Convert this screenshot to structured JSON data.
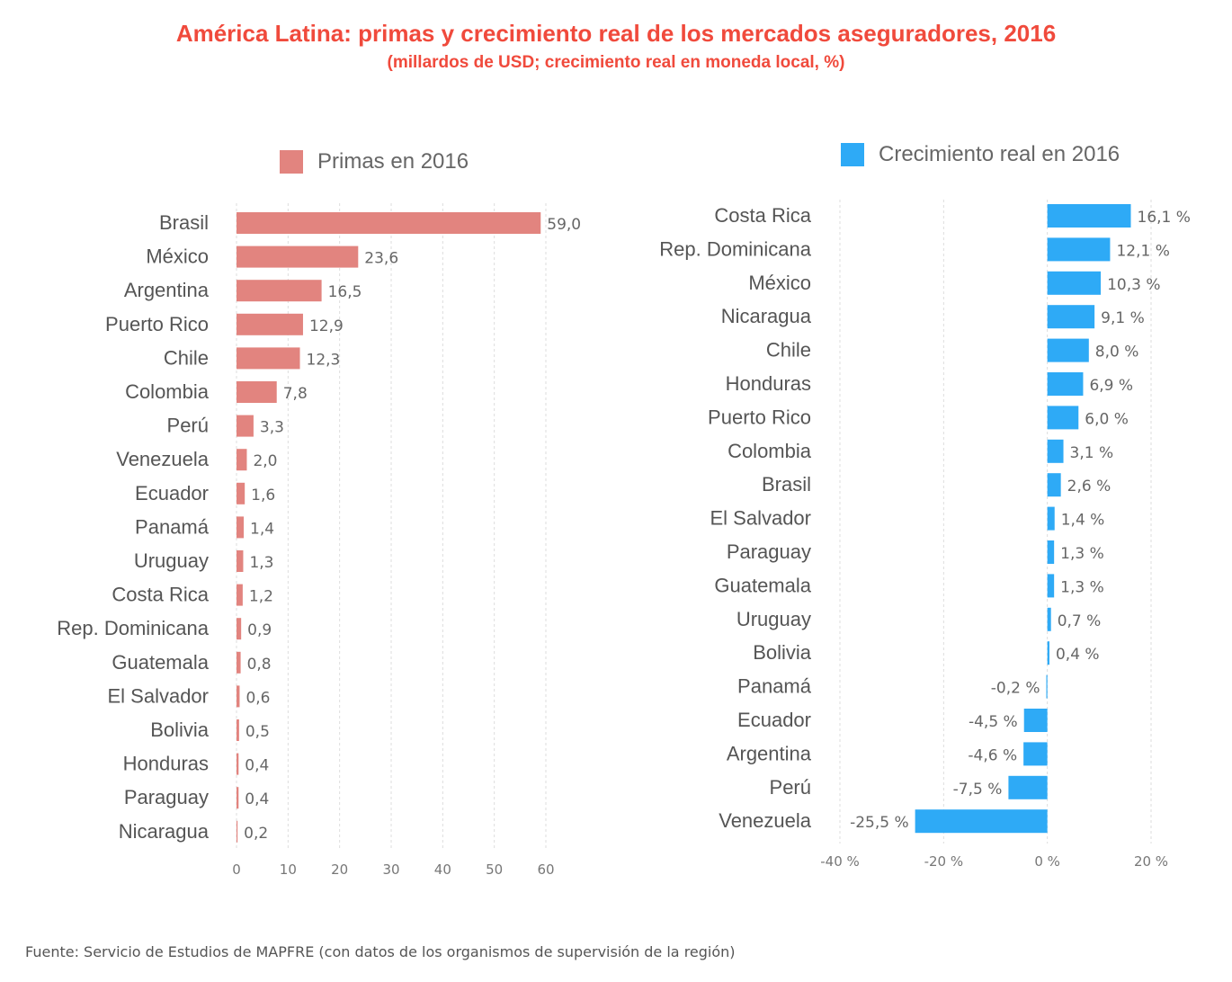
{
  "title": "América Latina: primas y crecimiento real de los mercados aseguradores, 2016",
  "subtitle": "(millardos de USD; crecimiento real en moneda local, %)",
  "source": "Fuente: Servicio de Estudios de MAPFRE (con datos de los organismos de supervisión de la región)",
  "chart_data": [
    {
      "type": "bar",
      "orientation": "horizontal",
      "legend": "Primas en 2016",
      "color": "#e2847f",
      "categories": [
        "Brasil",
        "México",
        "Argentina",
        "Puerto Rico",
        "Chile",
        "Colombia",
        "Perú",
        "Venezuela",
        "Ecuador",
        "Panamá",
        "Uruguay",
        "Costa Rica",
        "Rep. Dominicana",
        "Guatemala",
        "El Salvador",
        "Bolivia",
        "Honduras",
        "Paraguay",
        "Nicaragua"
      ],
      "values": [
        59.0,
        23.6,
        16.5,
        12.9,
        12.3,
        7.8,
        3.3,
        2.0,
        1.6,
        1.4,
        1.3,
        1.2,
        0.9,
        0.8,
        0.6,
        0.5,
        0.4,
        0.4,
        0.2
      ],
      "value_labels": [
        "59,0",
        "23,6",
        "16,5",
        "12,9",
        "12,3",
        "7,8",
        "3,3",
        "2,0",
        "1,6",
        "1,4",
        "1,3",
        "1,2",
        "0,9",
        "0,8",
        "0,6",
        "0,5",
        "0,4",
        "0,4",
        "0,2"
      ],
      "xlim": [
        0,
        60
      ],
      "ticks": [
        0,
        10,
        20,
        30,
        40,
        50,
        60
      ],
      "tick_labels": [
        "0",
        "10",
        "20",
        "30",
        "40",
        "50",
        "60"
      ],
      "grid": true
    },
    {
      "type": "bar",
      "orientation": "horizontal",
      "legend": "Crecimiento real en 2016",
      "color": "#2eaaf6",
      "categories": [
        "Costa Rica",
        "Rep. Dominicana",
        "México",
        "Nicaragua",
        "Chile",
        "Honduras",
        "Puerto Rico",
        "Colombia",
        "Brasil",
        "El Salvador",
        "Paraguay",
        "Guatemala",
        "Uruguay",
        "Bolivia",
        "Panamá",
        "Ecuador",
        "Argentina",
        "Perú",
        "Venezuela"
      ],
      "values": [
        16.1,
        12.1,
        10.3,
        9.1,
        8.0,
        6.9,
        6.0,
        3.1,
        2.6,
        1.4,
        1.3,
        1.3,
        0.7,
        0.4,
        -0.2,
        -4.5,
        -4.6,
        -7.5,
        -25.5
      ],
      "value_labels": [
        "16,1 %",
        "12,1 %",
        "10,3 %",
        "9,1 %",
        "8,0 %",
        "6,9 %",
        "6,0 %",
        "3,1 %",
        "2,6 %",
        "1,4 %",
        "1,3 %",
        "1,3 %",
        "0,7 %",
        "0,4 %",
        "-0,2 %",
        "-4,5 %",
        "-4,6 %",
        "-7,5 %",
        "-25,5 %"
      ],
      "xlim": [
        -40,
        20
      ],
      "ticks": [
        -40,
        -20,
        0,
        20
      ],
      "tick_labels": [
        "-40 %",
        "-20 %",
        "0 %",
        "20 %"
      ],
      "grid": true
    }
  ]
}
